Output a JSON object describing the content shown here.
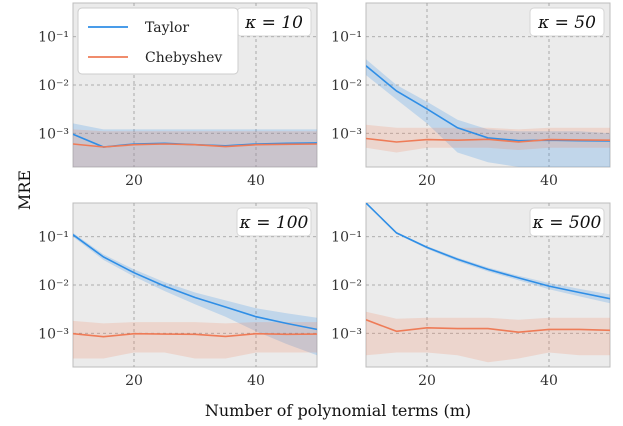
{
  "chart_data": [
    {
      "type": "line",
      "title": "κ = 10",
      "x": [
        10,
        15,
        20,
        25,
        30,
        35,
        40,
        45,
        50
      ],
      "series": [
        {
          "name": "Taylor",
          "values": [
            0.00095,
            0.00052,
            0.0006,
            0.00062,
            0.00058,
            0.00055,
            0.0006,
            0.00062,
            0.00063
          ],
          "band_low": [
            0.0002,
            0.0002,
            0.0002,
            0.0002,
            0.0002,
            0.0002,
            0.0002,
            0.0002,
            0.0002
          ],
          "band_high": [
            0.0016,
            0.0012,
            0.0012,
            0.0012,
            0.0012,
            0.0012,
            0.0012,
            0.0012,
            0.0012
          ]
        },
        {
          "name": "Chebyshev",
          "values": [
            0.0006,
            0.00052,
            0.00058,
            0.0006,
            0.00058,
            0.00053,
            0.00058,
            0.00059,
            0.0006
          ],
          "band_low": [
            0.0002,
            0.0002,
            0.0002,
            0.0002,
            0.0002,
            0.0002,
            0.0002,
            0.0002,
            0.0002
          ],
          "band_high": [
            0.0012,
            0.0011,
            0.0011,
            0.0011,
            0.0011,
            0.0011,
            0.0011,
            0.0011,
            0.0011
          ]
        }
      ]
    },
    {
      "type": "line",
      "title": "κ = 50",
      "x": [
        10,
        15,
        20,
        25,
        30,
        35,
        40,
        45,
        50
      ],
      "series": [
        {
          "name": "Taylor",
          "values": [
            0.025,
            0.0075,
            0.0032,
            0.0013,
            0.0008,
            0.0007,
            0.00072,
            0.0007,
            0.00069
          ],
          "band_low": [
            0.016,
            0.005,
            0.0016,
            0.0004,
            0.00025,
            0.0002,
            0.0002,
            0.0002,
            0.0002
          ],
          "band_high": [
            0.034,
            0.01,
            0.0045,
            0.0019,
            0.0012,
            0.0011,
            0.0011,
            0.0011,
            0.001
          ]
        },
        {
          "name": "Chebyshev",
          "values": [
            0.00078,
            0.00066,
            0.00074,
            0.00072,
            0.00075,
            0.00066,
            0.00074,
            0.00073,
            0.00072
          ],
          "band_low": [
            0.0005,
            0.0004,
            0.0005,
            0.0005,
            0.0005,
            0.00045,
            0.0005,
            0.0005,
            0.0005
          ],
          "band_high": [
            0.0015,
            0.0013,
            0.0013,
            0.0013,
            0.0013,
            0.0012,
            0.0013,
            0.0013,
            0.0013
          ]
        }
      ]
    },
    {
      "type": "line",
      "title": "κ = 100",
      "x": [
        10,
        15,
        20,
        25,
        30,
        35,
        40,
        45,
        50
      ],
      "series": [
        {
          "name": "Taylor",
          "values": [
            0.11,
            0.038,
            0.018,
            0.0095,
            0.0055,
            0.0035,
            0.0022,
            0.0016,
            0.0012
          ],
          "band_low": [
            0.1,
            0.033,
            0.015,
            0.0075,
            0.004,
            0.0022,
            0.0011,
            0.0006,
            0.00035
          ],
          "band_high": [
            0.12,
            0.043,
            0.021,
            0.0115,
            0.007,
            0.0048,
            0.0033,
            0.0026,
            0.0021
          ]
        },
        {
          "name": "Chebyshev",
          "values": [
            0.00098,
            0.00085,
            0.00098,
            0.00096,
            0.00095,
            0.00086,
            0.00098,
            0.00095,
            0.00096
          ],
          "band_low": [
            0.0003,
            0.0003,
            0.0004,
            0.0004,
            0.0003,
            0.0003,
            0.0004,
            0.0004,
            0.0004
          ],
          "band_high": [
            0.0018,
            0.0016,
            0.0017,
            0.0017,
            0.0017,
            0.0016,
            0.0017,
            0.0017,
            0.0017
          ]
        }
      ]
    },
    {
      "type": "line",
      "title": "κ = 500",
      "x": [
        10,
        15,
        20,
        25,
        30,
        35,
        40,
        45,
        50
      ],
      "series": [
        {
          "name": "Taylor",
          "values": [
            0.5,
            0.12,
            0.06,
            0.034,
            0.021,
            0.014,
            0.0095,
            0.007,
            0.0052
          ],
          "band_low": [
            0.48,
            0.115,
            0.056,
            0.031,
            0.019,
            0.0125,
            0.0082,
            0.0058,
            0.0042
          ],
          "band_high": [
            0.52,
            0.125,
            0.064,
            0.037,
            0.023,
            0.0155,
            0.011,
            0.0083,
            0.0064
          ]
        },
        {
          "name": "Chebyshev",
          "values": [
            0.0019,
            0.0011,
            0.0013,
            0.00125,
            0.00125,
            0.00105,
            0.0012,
            0.0012,
            0.00115
          ],
          "band_low": [
            0.00035,
            0.0004,
            0.0004,
            0.00035,
            0.00025,
            0.0003,
            0.0004,
            0.00035,
            0.00035
          ],
          "band_high": [
            0.0028,
            0.002,
            0.0021,
            0.0021,
            0.0021,
            0.0019,
            0.0021,
            0.0021,
            0.0021
          ]
        }
      ]
    }
  ],
  "shared": {
    "xlabel": "Number of polynomial terms (m)",
    "ylabel": "MRE",
    "x_ticks": [
      "20",
      "40"
    ],
    "xlim": [
      10,
      50
    ],
    "ylim": [
      0.0002,
      0.5
    ],
    "y_scale": "log",
    "y_ticks": [
      "10⁻¹",
      "10⁻²",
      "10⁻³"
    ],
    "grid": true,
    "legend_placement": "top-left of first panel",
    "colors": {
      "Taylor": "#2f8ee6",
      "Chebyshev": "#ee7b57"
    },
    "panel_background": "#ebebeb"
  }
}
